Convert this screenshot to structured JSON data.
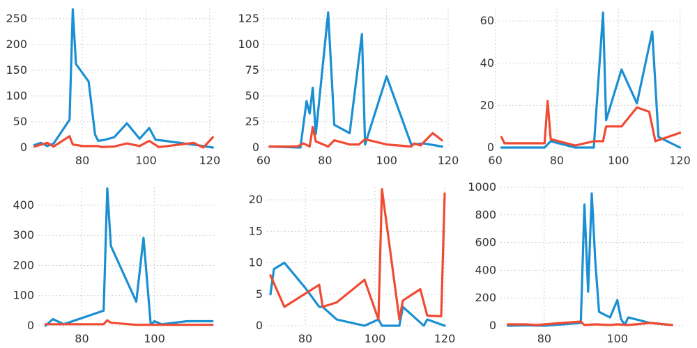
{
  "colors": {
    "blue": "#1a8fd1",
    "red": "#f04a32"
  },
  "chart_data": [
    {
      "type": "line",
      "grid": true,
      "xlim": [
        64,
        122
      ],
      "ylim": [
        0,
        270
      ],
      "xticks": [
        80,
        100,
        120
      ],
      "yticks": [
        0,
        50,
        100,
        150,
        200,
        250
      ],
      "series": [
        {
          "color": "#1a8fd1",
          "x": [
            65,
            67,
            69,
            71,
            76,
            77,
            78,
            82,
            84,
            85,
            87,
            90,
            94,
            98,
            101,
            103,
            106,
            118,
            121
          ],
          "y": [
            5,
            9,
            3,
            8,
            54,
            268,
            162,
            128,
            25,
            13,
            15,
            20,
            47,
            17,
            38,
            15,
            13,
            3,
            0
          ]
        },
        {
          "color": "#f04a32",
          "x": [
            65,
            69,
            71,
            76,
            77,
            80,
            83,
            84,
            85,
            86,
            90,
            94,
            98,
            101,
            104,
            115,
            118,
            121
          ],
          "y": [
            2,
            9,
            2,
            22,
            6,
            3,
            3,
            3,
            3,
            1,
            2,
            8,
            3,
            13,
            1,
            9,
            0,
            20
          ]
        }
      ]
    },
    {
      "type": "line",
      "grid": true,
      "xlim": [
        60,
        120
      ],
      "ylim": [
        0,
        135
      ],
      "xticks": [
        60,
        80,
        100,
        120
      ],
      "yticks": [
        0,
        25,
        50,
        75,
        100,
        125
      ],
      "series": [
        {
          "color": "#1a8fd1",
          "x": [
            62,
            72,
            74,
            75,
            76,
            77,
            81,
            83,
            88,
            92,
            93,
            100,
            108,
            112,
            118
          ],
          "y": [
            1,
            0,
            45,
            33,
            58,
            13,
            131,
            22,
            14,
            110,
            3,
            69,
            3,
            4,
            1
          ]
        },
        {
          "color": "#f04a32",
          "x": [
            62,
            71,
            73,
            75,
            76,
            77,
            81,
            83,
            88,
            91,
            93,
            100,
            108,
            109,
            111,
            115,
            118
          ],
          "y": [
            1,
            1,
            4,
            1,
            20,
            6,
            1,
            7,
            3,
            3,
            8,
            3,
            1,
            4,
            2,
            14,
            7
          ]
        }
      ]
    },
    {
      "type": "line",
      "grid": true,
      "xlim": [
        61,
        121
      ],
      "ylim": [
        0,
        66
      ],
      "xticks": [
        60,
        80,
        100,
        120
      ],
      "yticks": [
        0,
        20,
        40,
        60
      ],
      "series": [
        {
          "color": "#1a8fd1",
          "x": [
            62,
            76,
            78,
            86,
            92,
            95,
            96,
            101,
            106,
            111,
            113,
            120
          ],
          "y": [
            0,
            0,
            3,
            0,
            0,
            64,
            13,
            37,
            21,
            55,
            5,
            0
          ]
        },
        {
          "color": "#f04a32",
          "x": [
            62,
            63,
            70,
            76,
            77,
            78,
            86,
            92,
            95,
            96,
            101,
            106,
            110,
            112,
            120
          ],
          "y": [
            5,
            2,
            2,
            2,
            22,
            4,
            1,
            3,
            3,
            10,
            10,
            19,
            17,
            3,
            7
          ]
        }
      ]
    },
    {
      "type": "line",
      "grid": true,
      "xlim": [
        68,
        117
      ],
      "ylim": [
        0,
        460
      ],
      "xticks": [
        80,
        100
      ],
      "yticks": [
        0,
        100,
        200,
        300,
        400
      ],
      "series": [
        {
          "color": "#1a8fd1",
          "x": [
            70,
            72,
            75,
            86,
            87,
            88,
            95,
            97,
            99,
            100,
            102,
            109,
            116
          ],
          "y": [
            0,
            22,
            5,
            50,
            456,
            265,
            80,
            292,
            3,
            15,
            5,
            15,
            15
          ]
        },
        {
          "color": "#f04a32",
          "x": [
            70,
            86,
            87,
            88,
            95,
            99,
            101,
            109,
            116
          ],
          "y": [
            5,
            5,
            18,
            10,
            3,
            3,
            3,
            3,
            3
          ]
        }
      ]
    },
    {
      "type": "line",
      "grid": true,
      "xlim": [
        69,
        121
      ],
      "ylim": [
        0,
        22
      ],
      "xticks": [
        80,
        100,
        120
      ],
      "yticks": [
        0,
        5,
        10,
        15,
        20
      ],
      "series": [
        {
          "color": "#1a8fd1",
          "x": [
            70,
            71,
            74,
            80,
            84,
            85,
            89,
            97,
            101,
            102,
            107,
            108,
            114,
            115,
            120
          ],
          "y": [
            5,
            9,
            10,
            6,
            3,
            3,
            1,
            0,
            1,
            0,
            0,
            3,
            0,
            1,
            0
          ]
        },
        {
          "color": "#f04a32",
          "x": [
            70,
            74,
            84,
            85,
            89,
            97,
            101,
            102,
            107,
            108,
            113,
            115,
            119,
            120
          ],
          "y": [
            8,
            3,
            6.5,
            3,
            3.7,
            7.3,
            1,
            21.7,
            1,
            4,
            5.8,
            1.6,
            1.5,
            21
          ]
        }
      ]
    },
    {
      "type": "line",
      "grid": true,
      "xlim": [
        68,
        118
      ],
      "ylim": [
        0,
        1000
      ],
      "xticks": [
        80,
        100
      ],
      "yticks": [
        0,
        200,
        400,
        600,
        800,
        1000
      ],
      "series": [
        {
          "color": "#1a8fd1",
          "x": [
            70,
            75,
            80,
            85,
            90,
            91,
            92,
            93,
            94,
            95,
            98,
            100,
            101,
            102,
            103,
            109,
            115
          ],
          "y": [
            0,
            3,
            0,
            10,
            20,
            875,
            245,
            955,
            455,
            100,
            60,
            185,
            50,
            5,
            60,
            20,
            5
          ]
        },
        {
          "color": "#f04a32",
          "x": [
            70,
            75,
            78,
            80,
            90,
            91,
            94,
            98,
            100,
            103,
            109,
            115
          ],
          "y": [
            10,
            10,
            5,
            10,
            30,
            5,
            10,
            5,
            10,
            5,
            20,
            5
          ]
        }
      ]
    }
  ]
}
